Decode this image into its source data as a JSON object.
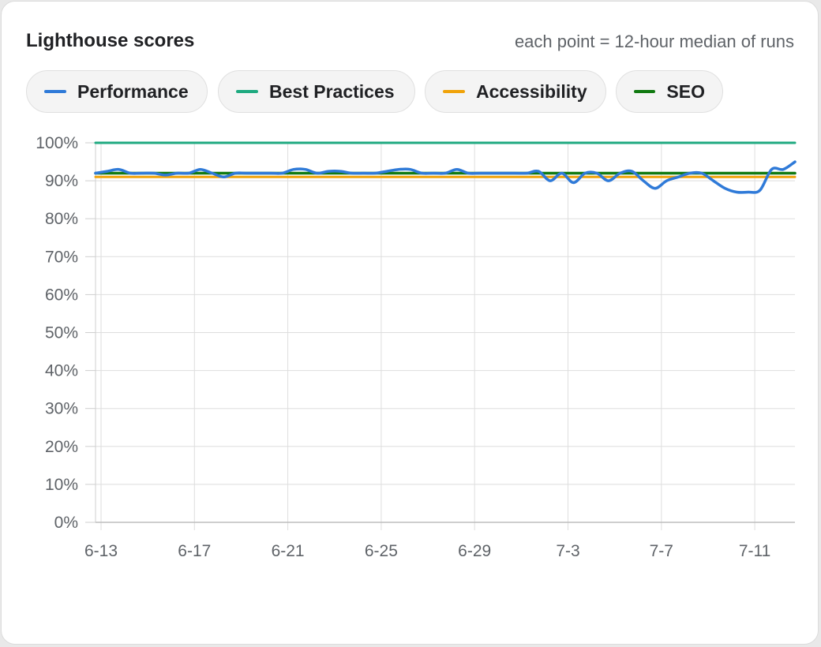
{
  "header": {
    "title": "Lighthouse scores",
    "subtitle": "each point = 12-hour median of runs"
  },
  "legend": [
    {
      "label": "Performance",
      "color": "#2f7ad8"
    },
    {
      "label": "Best Practices",
      "color": "#1faa80"
    },
    {
      "label": "Accessibility",
      "color": "#f0a30a"
    },
    {
      "label": "SEO",
      "color": "#117a11"
    }
  ],
  "chart_data": {
    "type": "line",
    "ylim": [
      0,
      100
    ],
    "yticks": [
      "0%",
      "10%",
      "20%",
      "30%",
      "40%",
      "50%",
      "60%",
      "70%",
      "80%",
      "90%",
      "100%"
    ],
    "xticks": [
      "6-13",
      "6-17",
      "6-21",
      "6-25",
      "6-29",
      "7-3",
      "7-7",
      "7-11"
    ],
    "x_start": "6-13",
    "x_end": "7-13",
    "grid": true,
    "series": [
      {
        "name": "Best Practices",
        "color": "#1faa80",
        "values": [
          100,
          100
        ]
      },
      {
        "name": "Accessibility",
        "color": "#f0a30a",
        "values": [
          91,
          91
        ]
      },
      {
        "name": "SEO",
        "color": "#117a11",
        "values": [
          92,
          92
        ]
      },
      {
        "name": "Performance",
        "color": "#2f7ad8",
        "values": [
          92,
          92.5,
          93,
          92,
          92,
          92,
          91.5,
          92,
          92,
          93,
          92,
          91,
          92,
          92,
          92,
          92,
          92,
          93,
          93,
          92,
          92.5,
          92.5,
          92,
          92,
          92,
          92.5,
          93,
          93,
          92,
          92,
          92,
          93,
          92,
          92,
          92,
          92,
          92,
          92,
          92.5,
          90,
          92,
          89.5,
          92,
          92,
          90,
          92,
          92.5,
          90,
          88,
          90,
          91,
          92,
          92,
          90,
          88,
          87,
          87,
          87.5,
          93,
          93,
          95
        ]
      }
    ]
  }
}
